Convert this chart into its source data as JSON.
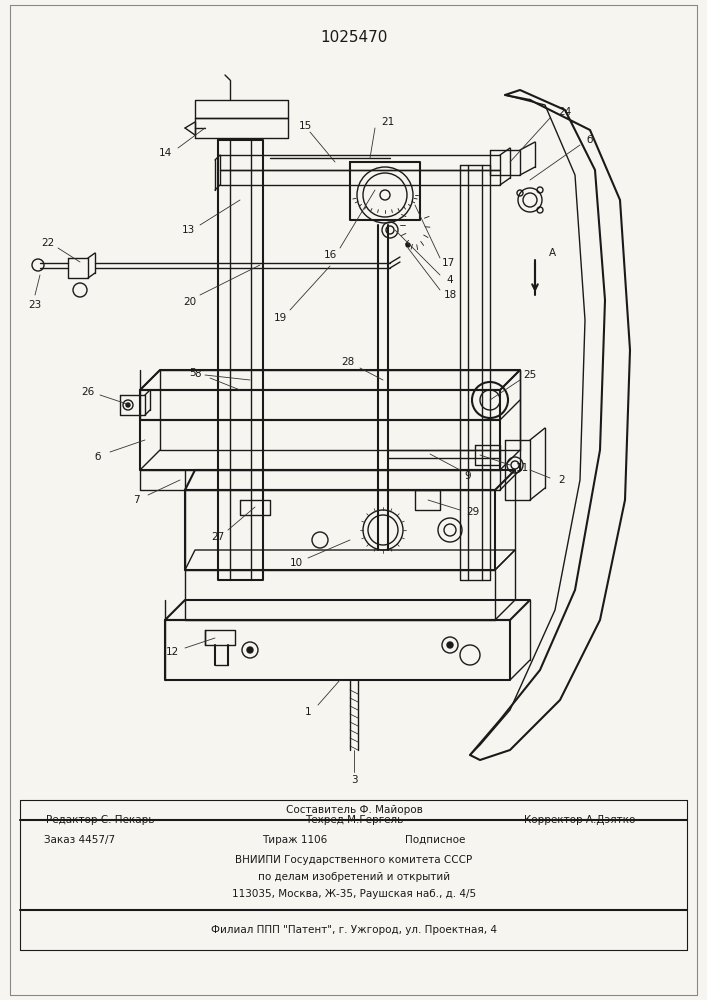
{
  "patent_number": "1025470",
  "bg_color": "#f7f5f0",
  "line_color": "#1a1a1a",
  "footer": {
    "compiler": "Составитель Ф. Майоров",
    "editor": "Редактор С. Пекарь",
    "techred": "Техред М.Гергель",
    "corrector": "Корректор А.Дэятко",
    "order": "Заказ 4457/7",
    "tirazh": "Тираж 1106",
    "podpisnoe": "Подписное",
    "vniip1": "ВНИИПИ Государственного комитета СССР",
    "vniip2": "по делам изобретений и открытий",
    "vniip3": "113035, Москва, Ж-35, Раушская наб., д. 4/5",
    "filial": "Филиал ППП \"Патент\", г. Ужгород, ул. Проектная, 4"
  }
}
